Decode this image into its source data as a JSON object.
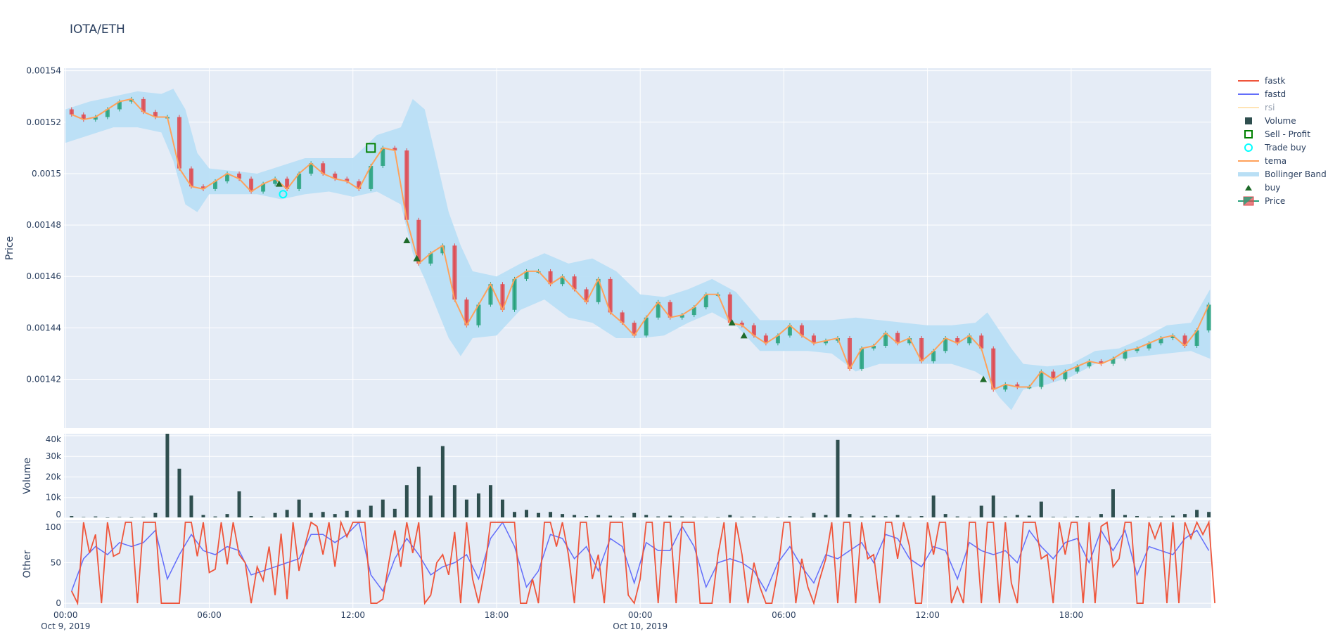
{
  "title": "IOTA/ETH",
  "legend": [
    {
      "name": "fastk",
      "symbol": "line",
      "color": "#ef553b"
    },
    {
      "name": "fastd",
      "symbol": "line",
      "color": "#636efa"
    },
    {
      "name": "rsi",
      "symbol": "line",
      "color": "#ffe4b5",
      "hidden": true
    },
    {
      "name": "Volume",
      "symbol": "square",
      "color": "#2f4f4f"
    },
    {
      "name": "Sell - Profit",
      "symbol": "square-open",
      "color": "#008000"
    },
    {
      "name": "Trade buy",
      "symbol": "circle-open",
      "color": "#00ffff"
    },
    {
      "name": "tema",
      "symbol": "line",
      "color": "#ffa15a"
    },
    {
      "name": "Bollinger Band",
      "symbol": "band",
      "color": "#b9dff5"
    },
    {
      "name": "buy",
      "symbol": "triangle-up",
      "color": "#1f6b2a"
    },
    {
      "name": "Price",
      "symbol": "candle",
      "color": "#26a17b"
    }
  ],
  "chart_data": {
    "type": "candlestick",
    "title": "IOTA/ETH",
    "grid": true,
    "legend_position": "right",
    "xaxis": {
      "type": "date",
      "range": [
        "2019-10-08 23:56",
        "2019-10-10 23:51"
      ],
      "ticks": [
        {
          "value": "2019-10-09 00:00",
          "label": "00:00",
          "sublabel": "Oct 9, 2019"
        },
        {
          "value": "2019-10-09 06:00",
          "label": "06:00"
        },
        {
          "value": "2019-10-09 12:00",
          "label": "12:00"
        },
        {
          "value": "2019-10-09 18:00",
          "label": "18:00"
        },
        {
          "value": "2019-10-10 00:00",
          "label": "00:00",
          "sublabel": "Oct 10, 2019"
        },
        {
          "value": "2019-10-10 06:00",
          "label": "06:00"
        },
        {
          "value": "2019-10-10 12:00",
          "label": "12:00"
        },
        {
          "value": "2019-10-10 18:00",
          "label": "18:00"
        }
      ]
    },
    "panels": {
      "price": {
        "ylabel": "Price",
        "ylim": [
          0.001401,
          0.001541
        ],
        "ticks": [
          {
            "v": 0.00142,
            "label": "0.00142"
          },
          {
            "v": 0.00144,
            "label": "0.00144"
          },
          {
            "v": 0.00146,
            "label": "0.00146"
          },
          {
            "v": 0.00148,
            "label": "0.00148"
          },
          {
            "v": 0.0015,
            "label": "0.0015"
          },
          {
            "v": 0.00152,
            "label": "0.00152"
          },
          {
            "v": 0.00154,
            "label": "0.00154"
          }
        ]
      },
      "volume": {
        "ylabel": "Volume",
        "ylim": [
          0,
          41000
        ],
        "ticks": [
          {
            "v": 0,
            "label": "0"
          },
          {
            "v": 10000,
            "label": "10k"
          },
          {
            "v": 20000,
            "label": "20k"
          },
          {
            "v": 30000,
            "label": "30k"
          },
          {
            "v": 40000,
            "label": "40k"
          }
        ]
      },
      "other": {
        "ylabel": "Other",
        "ylim": [
          -6,
          102.6
        ],
        "ticks": [
          {
            "v": 0,
            "label": "0"
          },
          {
            "v": 50,
            "label": "50"
          },
          {
            "v": 100,
            "label": "100"
          }
        ]
      }
    },
    "x_start": "2019-10-09 00:00",
    "price_step_minutes": 30,
    "close": [
      0.001523,
      0.001521,
      0.001522,
      0.001525,
      0.001528,
      0.001529,
      0.001524,
      0.001522,
      0.001522,
      0.001502,
      0.001495,
      0.001494,
      0.001497,
      0.0015,
      0.001498,
      0.001493,
      0.001496,
      0.001498,
      0.001494,
      0.0015,
      0.001504,
      0.0015,
      0.001498,
      0.001497,
      0.001494,
      0.001503,
      0.00151,
      0.001509,
      0.001482,
      0.001465,
      0.001469,
      0.001472,
      0.001451,
      0.001441,
      0.001449,
      0.001457,
      0.001447,
      0.001459,
      0.001462,
      0.001462,
      0.001457,
      0.00146,
      0.001455,
      0.00145,
      0.001459,
      0.001446,
      0.001442,
      0.001437,
      0.001444,
      0.00145,
      0.001444,
      0.001445,
      0.001448,
      0.001453,
      0.001453,
      0.001442,
      0.001441,
      0.001437,
      0.001434,
      0.001437,
      0.001441,
      0.001437,
      0.001434,
      0.001435,
      0.001436,
      0.001424,
      0.001432,
      0.001433,
      0.001438,
      0.001434,
      0.001436,
      0.001427,
      0.001431,
      0.001436,
      0.001434,
      0.001437,
      0.001432,
      0.001416,
      0.001418,
      0.001417,
      0.001417,
      0.001423,
      0.00142,
      0.001423,
      0.001425,
      0.001427,
      0.001426,
      0.001428,
      0.001431,
      0.001432,
      0.001434,
      0.001436,
      0.001437,
      0.001433,
      0.001439,
      0.001449
    ],
    "tema": [
      0.001523,
      0.001521,
      0.001522,
      0.001525,
      0.001528,
      0.001529,
      0.001524,
      0.001522,
      0.001522,
      0.001502,
      0.001495,
      0.001494,
      0.001497,
      0.0015,
      0.001498,
      0.001493,
      0.001496,
      0.001498,
      0.001494,
      0.0015,
      0.001504,
      0.0015,
      0.001498,
      0.001497,
      0.001494,
      0.001503,
      0.00151,
      0.001509,
      0.001482,
      0.001465,
      0.001469,
      0.001472,
      0.001451,
      0.001441,
      0.001449,
      0.001457,
      0.001447,
      0.001459,
      0.001462,
      0.001462,
      0.001457,
      0.00146,
      0.001455,
      0.00145,
      0.001459,
      0.001446,
      0.001442,
      0.001437,
      0.001444,
      0.00145,
      0.001444,
      0.001445,
      0.001448,
      0.001453,
      0.001453,
      0.001442,
      0.001441,
      0.001437,
      0.001434,
      0.001437,
      0.001441,
      0.001437,
      0.001434,
      0.001435,
      0.001436,
      0.001424,
      0.001432,
      0.001433,
      0.001438,
      0.001434,
      0.001436,
      0.001427,
      0.001431,
      0.001436,
      0.001434,
      0.001437,
      0.001432,
      0.001416,
      0.001418,
      0.001417,
      0.001417,
      0.001423,
      0.00142,
      0.001423,
      0.001425,
      0.001427,
      0.001426,
      0.001428,
      0.001431,
      0.001432,
      0.001434,
      0.001436,
      0.001437,
      0.001433,
      0.001439,
      0.001449
    ],
    "bollinger": {
      "x": [
        "2019-10-09 00:00",
        "2019-10-09 01:00",
        "2019-10-09 02:00",
        "2019-10-09 03:00",
        "2019-10-09 04:00",
        "2019-10-09 04:30",
        "2019-10-09 05:00",
        "2019-10-09 05:30",
        "2019-10-09 06:00",
        "2019-10-09 07:00",
        "2019-10-09 08:00",
        "2019-10-09 09:00",
        "2019-10-09 10:00",
        "2019-10-09 11:00",
        "2019-10-09 12:00",
        "2019-10-09 13:00",
        "2019-10-09 14:00",
        "2019-10-09 14:30",
        "2019-10-09 15:00",
        "2019-10-09 16:00",
        "2019-10-09 16:30",
        "2019-10-09 17:00",
        "2019-10-09 18:00",
        "2019-10-09 19:00",
        "2019-10-09 20:00",
        "2019-10-09 21:00",
        "2019-10-09 22:00",
        "2019-10-09 23:00",
        "2019-10-10 00:00",
        "2019-10-10 01:00",
        "2019-10-10 02:00",
        "2019-10-10 03:00",
        "2019-10-10 04:00",
        "2019-10-10 05:00",
        "2019-10-10 06:00",
        "2019-10-10 07:00",
        "2019-10-10 08:00",
        "2019-10-10 09:00",
        "2019-10-10 10:00",
        "2019-10-10 11:00",
        "2019-10-10 12:00",
        "2019-10-10 13:00",
        "2019-10-10 14:00",
        "2019-10-10 14:30",
        "2019-10-10 15:00",
        "2019-10-10 15:30",
        "2019-10-10 16:00",
        "2019-10-10 17:00",
        "2019-10-10 18:00",
        "2019-10-10 19:00",
        "2019-10-10 20:00",
        "2019-10-10 21:00",
        "2019-10-10 22:00",
        "2019-10-10 23:00",
        "2019-10-10 23:48"
      ],
      "upper": [
        0.001525,
        0.001528,
        0.00153,
        0.001532,
        0.001531,
        0.001533,
        0.001525,
        0.001508,
        0.001502,
        0.001501,
        0.0015,
        0.001503,
        0.001506,
        0.001506,
        0.001506,
        0.001515,
        0.001518,
        0.001529,
        0.001525,
        0.001485,
        0.001472,
        0.001462,
        0.00146,
        0.001465,
        0.001469,
        0.001465,
        0.001467,
        0.001462,
        0.001453,
        0.001452,
        0.001455,
        0.001459,
        0.001454,
        0.001443,
        0.001443,
        0.001443,
        0.001443,
        0.001444,
        0.001443,
        0.001442,
        0.001441,
        0.001441,
        0.001442,
        0.001446,
        0.001439,
        0.001432,
        0.001426,
        0.001425,
        0.001426,
        0.001431,
        0.001432,
        0.001436,
        0.001441,
        0.001442,
        0.001455
      ],
      "lower": [
        0.001512,
        0.001515,
        0.001518,
        0.001518,
        0.001516,
        0.001505,
        0.001488,
        0.001485,
        0.001492,
        0.001492,
        0.001492,
        0.00149,
        0.001492,
        0.001493,
        0.001491,
        0.001493,
        0.001488,
        0.001469,
        0.001459,
        0.001436,
        0.001429,
        0.001436,
        0.001437,
        0.001447,
        0.001451,
        0.001444,
        0.001442,
        0.001436,
        0.001436,
        0.001437,
        0.001442,
        0.001446,
        0.001441,
        0.001431,
        0.001431,
        0.001431,
        0.00143,
        0.001423,
        0.001426,
        0.001426,
        0.001426,
        0.001426,
        0.001423,
        0.00142,
        0.001413,
        0.001408,
        0.001416,
        0.001418,
        0.001421,
        0.001426,
        0.001428,
        0.001429,
        0.00143,
        0.001431,
        0.001428
      ]
    },
    "buy": [
      {
        "x": "2019-10-09 08:55",
        "y": 0.001496
      },
      {
        "x": "2019-10-09 14:15",
        "y": 0.001474
      },
      {
        "x": "2019-10-09 14:40",
        "y": 0.001467
      },
      {
        "x": "2019-10-10 03:50",
        "y": 0.001442
      },
      {
        "x": "2019-10-10 04:20",
        "y": 0.001437
      },
      {
        "x": "2019-10-10 14:20",
        "y": 0.00142
      }
    ],
    "trade_buy": [
      {
        "x": "2019-10-09 09:05",
        "y": 0.001492
      }
    ],
    "sell_profit": [
      {
        "x": "2019-10-09 12:45",
        "y": 0.00151
      }
    ],
    "volume_step_minutes": 30,
    "volume": [
      1000,
      500,
      800,
      300,
      500,
      400,
      600,
      2500,
      41000,
      24000,
      11000,
      1500,
      800,
      2000,
      13000,
      1000,
      600,
      2500,
      4000,
      9000,
      2500,
      3000,
      2000,
      3500,
      4000,
      6000,
      9000,
      4500,
      16000,
      25000,
      11000,
      35000,
      16000,
      9000,
      12000,
      16000,
      9000,
      3000,
      4000,
      2500,
      3000,
      2000,
      1500,
      1000,
      1500,
      1200,
      800,
      2500,
      1500,
      800,
      1200,
      800,
      600,
      500,
      400,
      1500,
      600,
      800,
      500,
      400,
      900,
      500,
      2500,
      1500,
      38000,
      2000,
      800,
      1200,
      900,
      1500,
      700,
      1000,
      11000,
      2000,
      800,
      500,
      6000,
      11000,
      800,
      1500,
      1200,
      8000,
      600,
      500,
      900,
      500,
      2000,
      14000,
      1500,
      1000,
      500,
      800,
      1200,
      2000,
      4000,
      3000
    ],
    "fastk_step_minutes": 15,
    "fastk": [
      15,
      0,
      100,
      62,
      85,
      0,
      100,
      58,
      62,
      100,
      100,
      0,
      100,
      100,
      100,
      0,
      0,
      0,
      0,
      100,
      100,
      58,
      100,
      38,
      42,
      100,
      48,
      100,
      60,
      50,
      0,
      45,
      28,
      70,
      10,
      86,
      5,
      100,
      40,
      72,
      100,
      95,
      60,
      100,
      45,
      100,
      82,
      100,
      100,
      100,
      0,
      0,
      5,
      50,
      90,
      45,
      100,
      62,
      100,
      0,
      10,
      50,
      60,
      35,
      88,
      0,
      100,
      30,
      0,
      40,
      100,
      100,
      100,
      100,
      100,
      0,
      0,
      30,
      0,
      100,
      100,
      70,
      100,
      60,
      0,
      100,
      100,
      30,
      60,
      0,
      100,
      100,
      100,
      10,
      0,
      30,
      100,
      100,
      0,
      100,
      100,
      0,
      100,
      100,
      100,
      0,
      0,
      0,
      60,
      100,
      0,
      100,
      60,
      0,
      50,
      20,
      0,
      0,
      40,
      100,
      100,
      0,
      55,
      20,
      0,
      30,
      55,
      100,
      0,
      100,
      100,
      0,
      100,
      55,
      60,
      0,
      100,
      100,
      55,
      100,
      70,
      0,
      0,
      100,
      60,
      100,
      100,
      0,
      20,
      0,
      100,
      100,
      0,
      100,
      100,
      0,
      100,
      25,
      0,
      100,
      100,
      100,
      55,
      60,
      0,
      100,
      60,
      100,
      100,
      0,
      100,
      0,
      95,
      100,
      45,
      55,
      100,
      100,
      0,
      0,
      100,
      80,
      100,
      0,
      100,
      0,
      100,
      80,
      100,
      85,
      100,
      0
    ],
    "fastd_step_minutes": 30,
    "fastd": [
      15,
      55,
      70,
      60,
      75,
      70,
      75,
      90,
      30,
      60,
      85,
      65,
      60,
      70,
      65,
      35,
      40,
      45,
      50,
      55,
      85,
      85,
      75,
      85,
      100,
      35,
      15,
      55,
      80,
      60,
      35,
      45,
      50,
      60,
      30,
      80,
      100,
      70,
      20,
      40,
      85,
      80,
      55,
      70,
      40,
      80,
      70,
      25,
      75,
      65,
      65,
      95,
      70,
      20,
      50,
      55,
      50,
      40,
      15,
      50,
      70,
      45,
      25,
      60,
      55,
      65,
      75,
      50,
      85,
      80,
      55,
      45,
      70,
      65,
      30,
      75,
      65,
      60,
      65,
      50,
      90,
      70,
      55,
      75,
      80,
      50,
      90,
      65,
      90,
      35,
      70,
      65,
      60,
      80,
      90,
      65
    ],
    "colors": {
      "increasing": "#26a17b",
      "decreasing": "#e0474c",
      "plot_bg": "#e5ecf6"
    }
  }
}
